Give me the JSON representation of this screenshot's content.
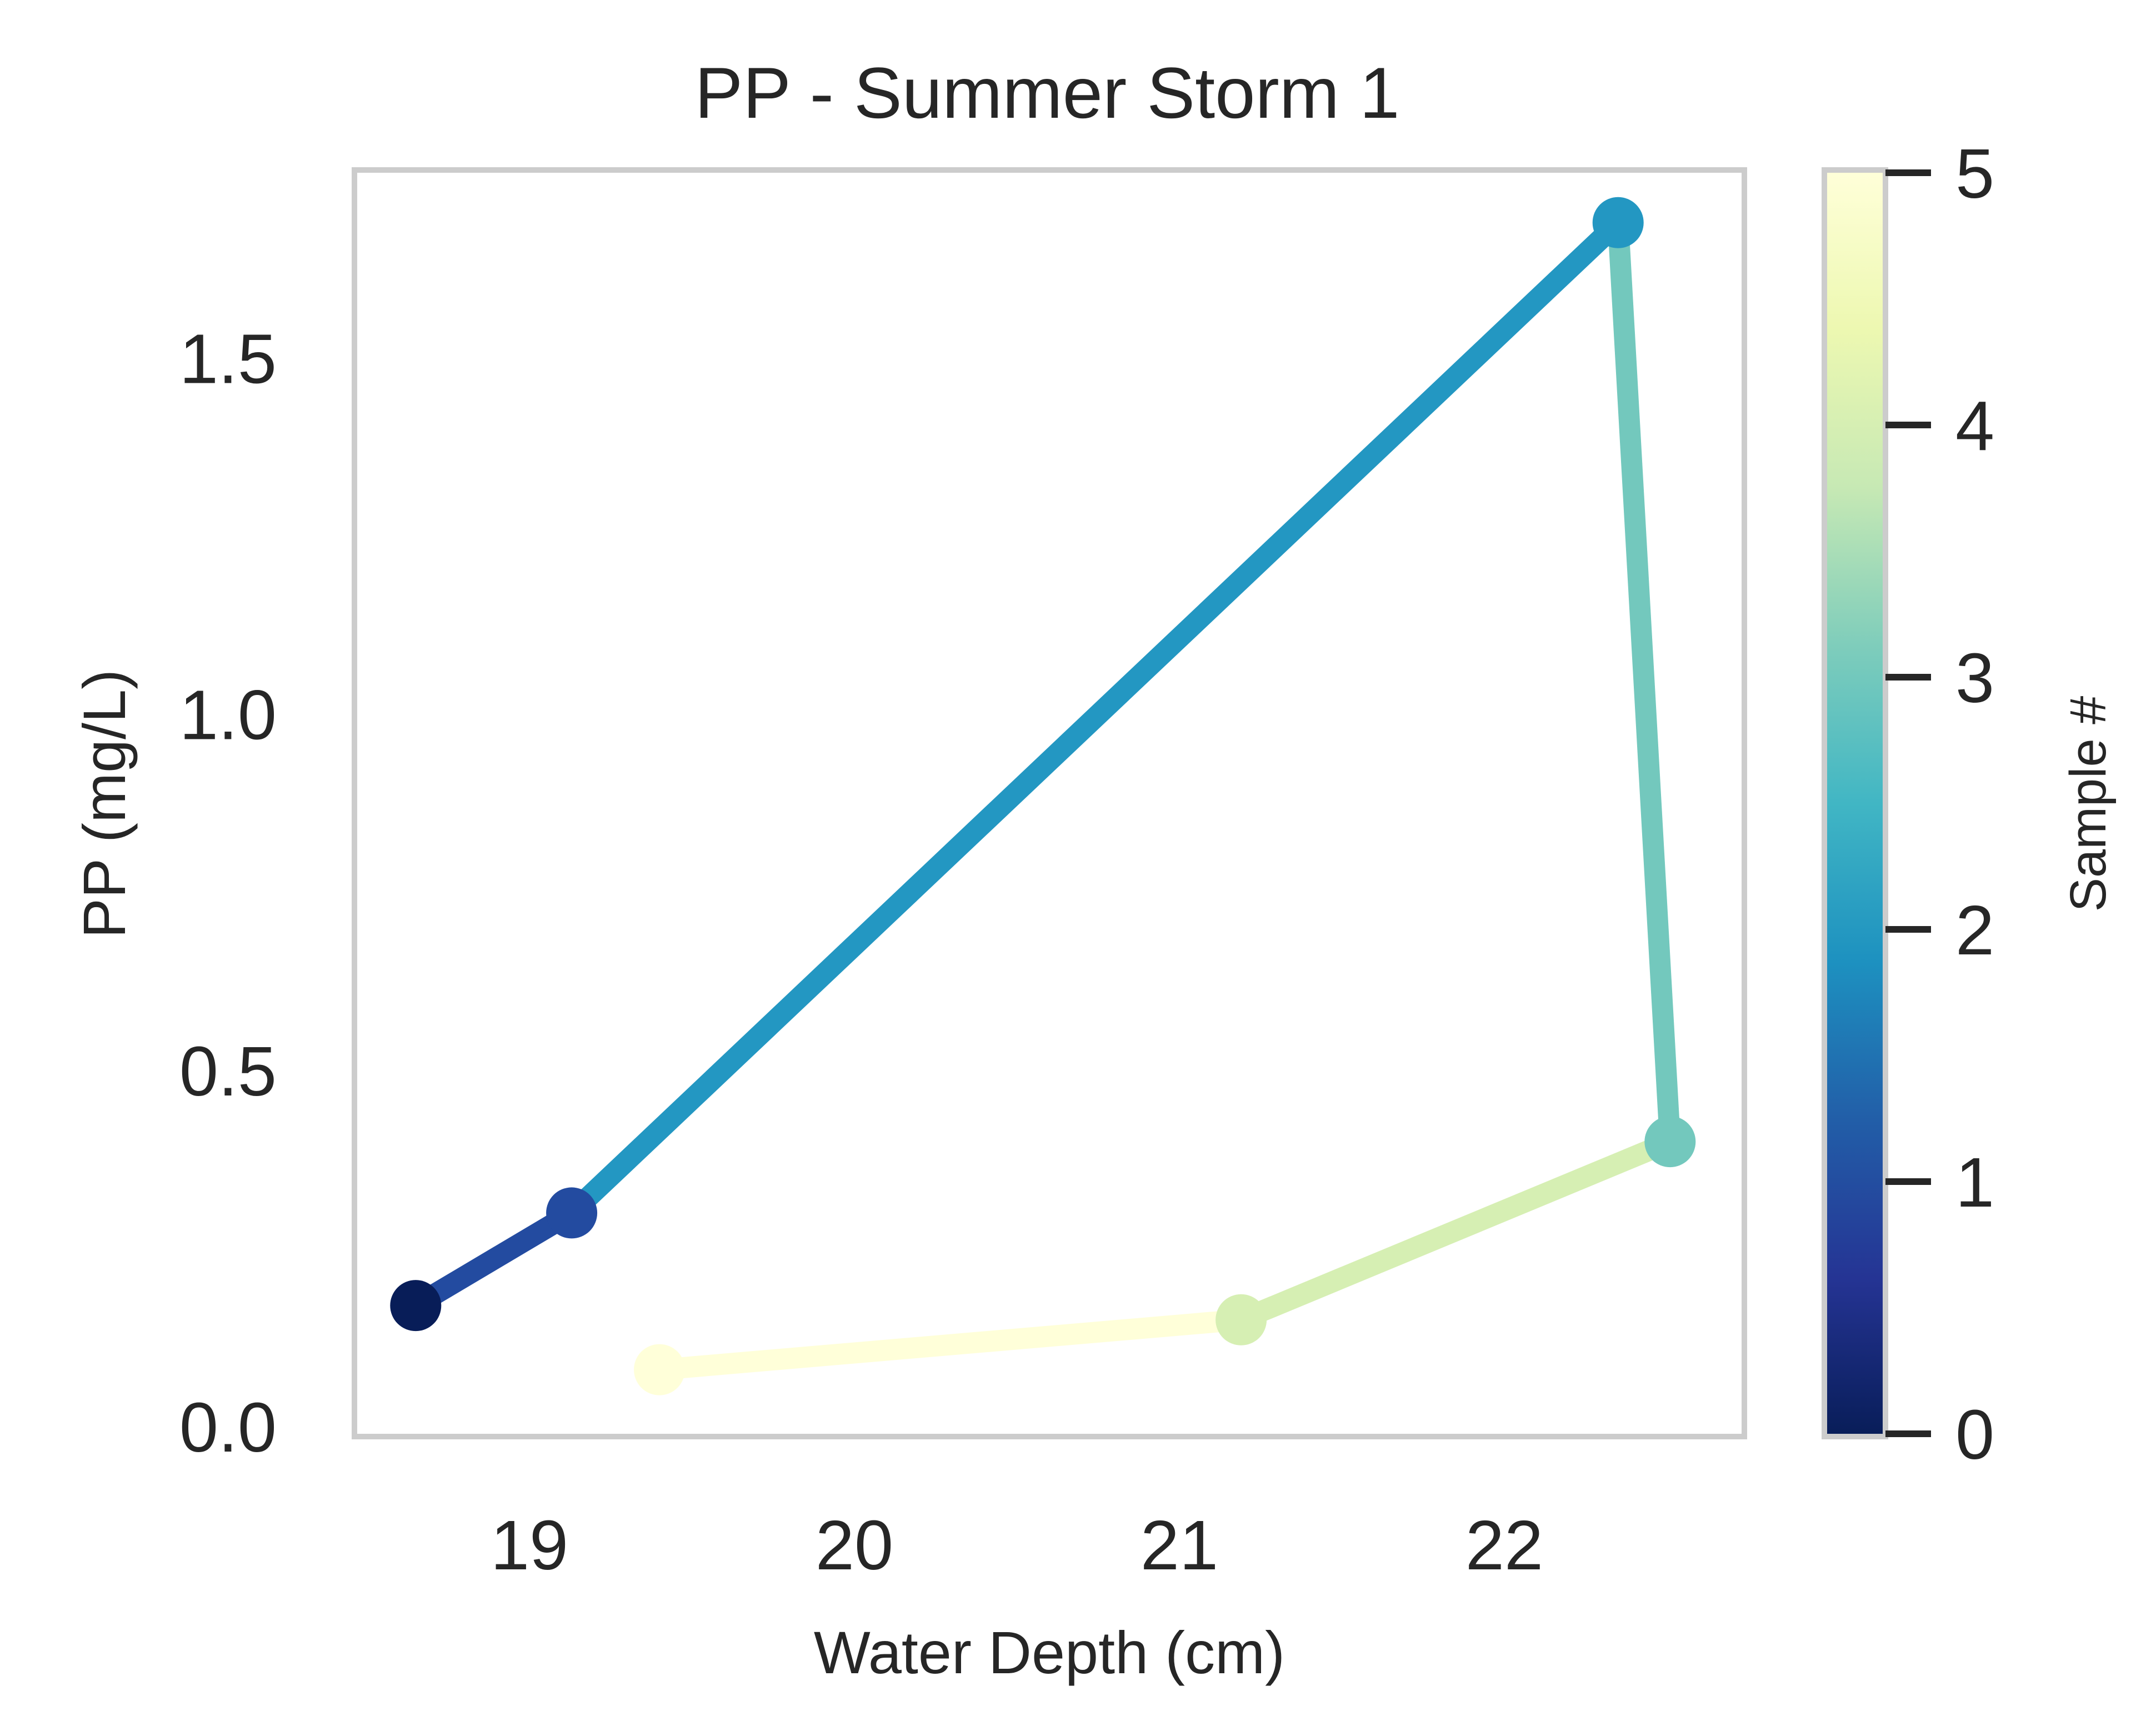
{
  "chart_data": {
    "type": "line",
    "title": "PP - Summer Storm 1",
    "xlabel": "Water Depth (cm)",
    "ylabel": "PP (mg/L)",
    "xlim": [
      18.47,
      22.73
    ],
    "ylim": [
      -0.01,
      1.76
    ],
    "x_ticks": [
      "19",
      "20",
      "21",
      "22"
    ],
    "y_ticks": [
      "0.0",
      "0.5",
      "1.0",
      "1.5"
    ],
    "grid": false,
    "points": [
      {
        "sample": 0,
        "x": 18.65,
        "y": 0.17,
        "color": "#081d58"
      },
      {
        "sample": 1,
        "x": 19.13,
        "y": 0.3,
        "color": "#234ba0"
      },
      {
        "sample": 2,
        "x": 22.35,
        "y": 1.69,
        "color": "#2397c2"
      },
      {
        "sample": 3,
        "x": 22.51,
        "y": 0.4,
        "color": "#73c8bd"
      },
      {
        "sample": 4,
        "x": 21.19,
        "y": 0.15,
        "color": "#d6efb3"
      },
      {
        "sample": 5,
        "x": 19.4,
        "y": 0.08,
        "color": "#ffffd9"
      }
    ],
    "colorbar": {
      "label": "Sample #",
      "colormap": "YlGnBu_r",
      "range": [
        0,
        5
      ],
      "ticks": [
        "0",
        "1",
        "2",
        "3",
        "4",
        "5"
      ],
      "stops": [
        "#081d58",
        "#253494",
        "#225ea8",
        "#1d91c0",
        "#41b6c4",
        "#7fcdbb",
        "#c7e9b4",
        "#edf8b1",
        "#ffffd9"
      ]
    }
  }
}
